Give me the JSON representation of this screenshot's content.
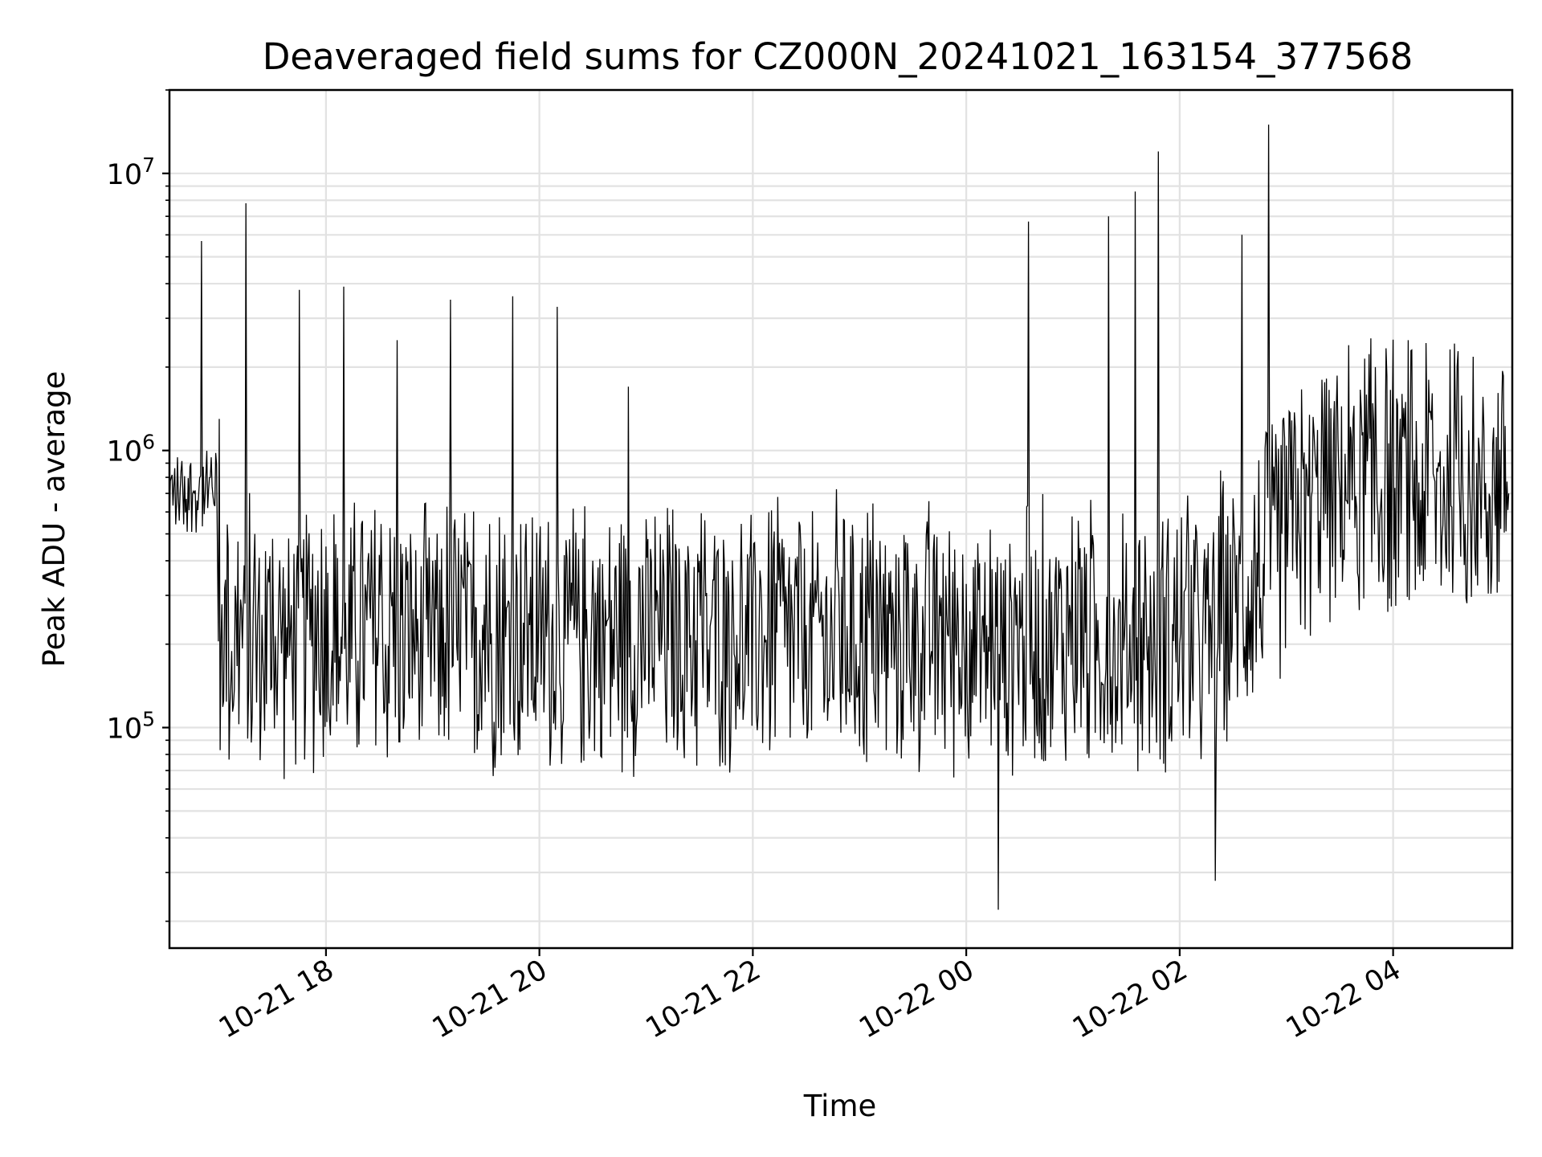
{
  "chart_data": {
    "type": "line",
    "title": "Deaveraged field sums for CZ000N_20241021_163154_377568",
    "xlabel": "Time",
    "ylabel": "Peak ADU - average",
    "y_scale": "log",
    "xlim": [
      "2024-10-21 16:32",
      "2024-10-22 05:07"
    ],
    "ylim": [
      16000,
      20000000
    ],
    "x_ticks": [
      {
        "value": "2024-10-21 18:00",
        "label": "10-21 18"
      },
      {
        "value": "2024-10-21 20:00",
        "label": "10-21 20"
      },
      {
        "value": "2024-10-21 22:00",
        "label": "10-21 22"
      },
      {
        "value": "2024-10-22 00:00",
        "label": "10-22 00"
      },
      {
        "value": "2024-10-22 02:00",
        "label": "10-22 02"
      },
      {
        "value": "2024-10-22 04:00",
        "label": "10-22 04"
      }
    ],
    "y_ticks": [
      {
        "value": 100000,
        "base": "10",
        "exp": "5"
      },
      {
        "value": 1000000,
        "base": "10",
        "exp": "6"
      },
      {
        "value": 10000000,
        "base": "10",
        "exp": "7"
      }
    ],
    "grid": true,
    "line_color": "#000000",
    "series": [
      {
        "x": [
          "2024-10-21 16:32",
          "2024-10-21 16:45",
          "2024-10-21 16:50",
          "2024-10-21 16:55",
          "2024-10-21 17:00",
          "2024-10-21 17:05",
          "2024-10-21 17:15",
          "2024-10-21 17:20",
          "2024-10-21 17:30",
          "2024-10-21 17:45",
          "2024-10-21 17:50",
          "2024-10-21 18:00",
          "2024-10-21 18:10",
          "2024-10-21 18:30",
          "2024-10-21 18:40",
          "2024-10-21 19:00",
          "2024-10-21 19:10",
          "2024-10-21 19:20",
          "2024-10-21 19:30",
          "2024-10-21 19:45",
          "2024-10-21 19:55",
          "2024-10-21 20:10",
          "2024-10-21 20:30",
          "2024-10-21 20:50",
          "2024-10-21 21:10",
          "2024-10-21 21:30",
          "2024-10-21 21:45",
          "2024-10-21 22:00",
          "2024-10-21 22:20",
          "2024-10-21 22:35",
          "2024-10-21 22:50",
          "2024-10-21 23:10",
          "2024-10-21 23:30",
          "2024-10-21 23:45",
          "2024-10-22 00:00",
          "2024-10-22 00:18",
          "2024-10-22 00:35",
          "2024-10-22 00:50",
          "2024-10-22 01:05",
          "2024-10-22 01:20",
          "2024-10-22 01:35",
          "2024-10-22 01:48",
          "2024-10-22 02:05",
          "2024-10-22 02:20",
          "2024-10-22 02:35",
          "2024-10-22 02:50",
          "2024-10-22 03:05",
          "2024-10-22 03:20",
          "2024-10-22 03:35",
          "2024-10-22 03:50",
          "2024-10-22 04:05",
          "2024-10-22 04:20",
          "2024-10-22 04:35",
          "2024-10-22 04:50",
          "2024-10-22 05:05"
        ],
        "y": [
          550000,
          700000,
          5700000,
          800000,
          1300000,
          450000,
          7800000,
          500000,
          480000,
          3800000,
          400000,
          450000,
          3900000,
          420000,
          2500000,
          400000,
          3500000,
          380000,
          420000,
          3600000,
          350000,
          3300000,
          400000,
          1700000,
          350000,
          400000,
          350000,
          300000,
          330000,
          340000,
          350000,
          330000,
          320000,
          300000,
          330000,
          22000,
          6700000,
          350000,
          380000,
          7000000,
          8600000,
          12000000,
          450000,
          28000,
          6000000,
          15000000,
          1200000,
          1800000,
          2400000,
          2000000,
          1600000,
          1800000,
          1400000,
          1000000,
          700000
        ]
      }
    ]
  }
}
